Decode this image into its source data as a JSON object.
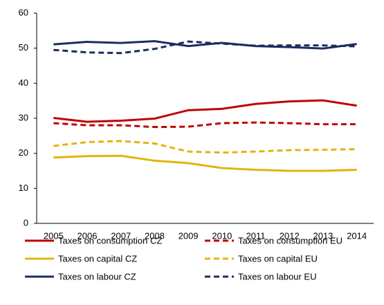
{
  "chart_data": {
    "type": "line",
    "categories": [
      "2005",
      "2006",
      "2007",
      "2008",
      "2009",
      "2010",
      "2011",
      "2012",
      "2013",
      "2014"
    ],
    "series": [
      {
        "name": "Taxes on consumption CZ",
        "color": "#c00000",
        "dashed": false,
        "values": [
          30.1,
          29.0,
          29.3,
          29.9,
          32.3,
          32.7,
          34.1,
          34.8,
          35.1,
          33.6
        ]
      },
      {
        "name": "Taxes on consumption EU",
        "color": "#c00000",
        "dashed": true,
        "values": [
          28.6,
          28.0,
          28.0,
          27.5,
          27.6,
          28.6,
          28.8,
          28.6,
          28.3,
          28.3
        ]
      },
      {
        "name": "Taxes on capital CZ",
        "color": "#e3b40c",
        "dashed": false,
        "values": [
          18.8,
          19.2,
          19.3,
          17.9,
          17.2,
          15.8,
          15.3,
          15.0,
          15.0,
          15.3
        ]
      },
      {
        "name": "Taxes on capital EU",
        "color": "#e3b40c",
        "dashed": true,
        "values": [
          22.1,
          23.2,
          23.5,
          22.8,
          20.5,
          20.2,
          20.5,
          20.9,
          21.0,
          21.2
        ]
      },
      {
        "name": "Taxes on labour CZ",
        "color": "#1b2d5e",
        "dashed": false,
        "values": [
          51.1,
          51.8,
          51.5,
          52.0,
          50.6,
          51.5,
          50.6,
          50.3,
          49.9,
          51.2
        ]
      },
      {
        "name": "Taxes on labour EU",
        "color": "#1b2d5e",
        "dashed": true,
        "values": [
          49.5,
          48.8,
          48.6,
          49.8,
          51.9,
          51.3,
          50.7,
          50.8,
          50.8,
          50.5
        ]
      }
    ],
    "ylim": [
      0,
      60
    ],
    "yticks": [
      0,
      10,
      20,
      30,
      40,
      50,
      60
    ],
    "grid": false,
    "legend": "bottom"
  }
}
